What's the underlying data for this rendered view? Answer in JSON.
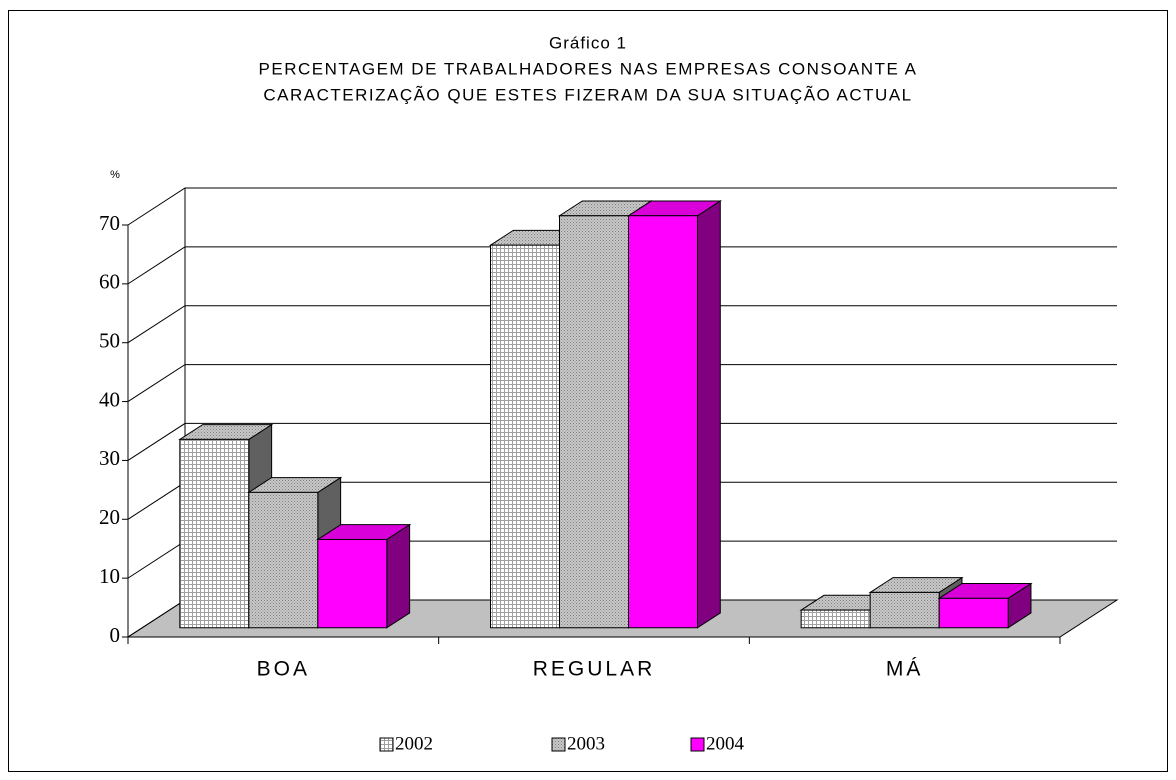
{
  "chart_data": {
    "type": "bar3d",
    "title": [
      "Gráfico 1",
      "PERCENTAGEM DE TRABALHADORES NAS EMPRESAS CONSOANTE A",
      "CARACTERIZAÇÃO QUE ESTES FIZERAM DA SUA SITUAÇÃO ACTUAL"
    ],
    "y_axis_label": "%",
    "categories": [
      "BOA",
      "REGULAR",
      "MÁ"
    ],
    "series": [
      {
        "name": "2002",
        "color": "#ffffff",
        "values": [
          32,
          65,
          3
        ]
      },
      {
        "name": "2003",
        "color": "#c0c0c0",
        "values": [
          23,
          70,
          6
        ]
      },
      {
        "name": "2004",
        "color": "#ff00ff",
        "values": [
          15,
          70,
          5
        ]
      }
    ],
    "ylim": [
      0,
      70
    ],
    "yticks": [
      0,
      10,
      20,
      30,
      40,
      50,
      60,
      70
    ],
    "grid": true,
    "legend": "bottom"
  }
}
